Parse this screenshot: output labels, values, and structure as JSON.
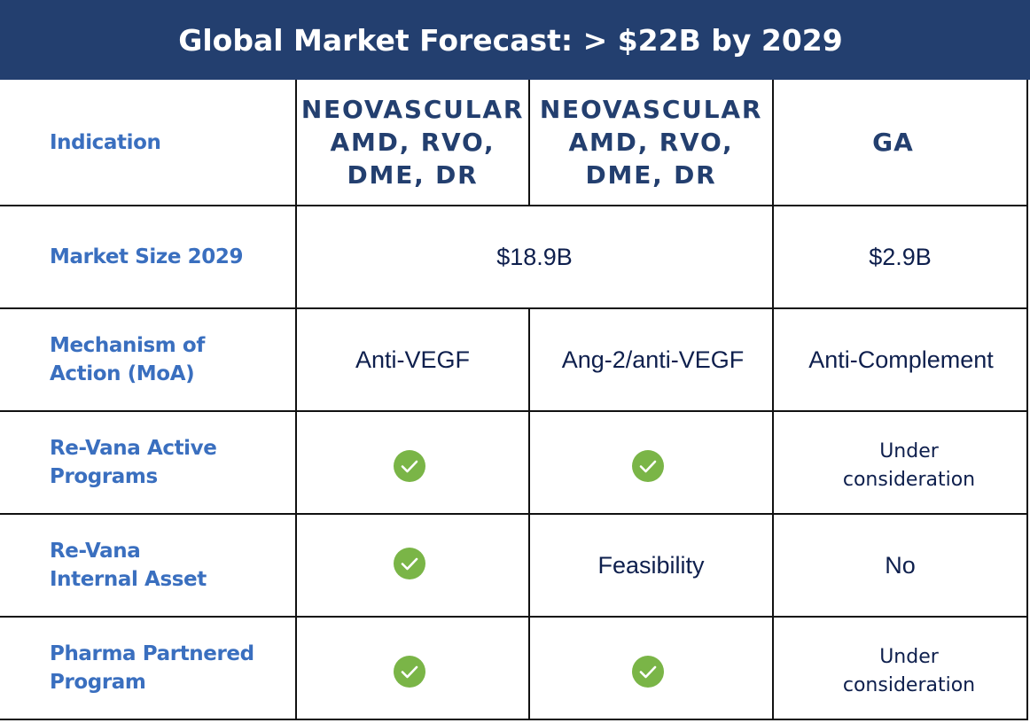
{
  "title": "Global Market Forecast: > $22B by 2029",
  "colors": {
    "title_bg": "#233f6f",
    "title_text": "#ffffff",
    "label_text": "#3a6fbf",
    "header_text": "#233f6f",
    "body_text": "#0e1f4d",
    "check_fill": "#7ab547",
    "grid_line": "#111111"
  },
  "rows": {
    "indication": {
      "label": "Indication",
      "col1": "NEOVASCULAR\nAMD, RVO,\nDME, DR",
      "col2": "NEOVASCULAR\nAMD, RVO,\nDME, DR",
      "col3": "GA"
    },
    "market_size": {
      "label": "Market Size 2029",
      "col12": "$18.9B",
      "col3": "$2.9B"
    },
    "moa": {
      "label": "Mechanism of\nAction (MoA)",
      "col1": "Anti-VEGF",
      "col2": "Ang-2/anti-VEGF",
      "col3": "Anti-Complement"
    },
    "active_programs": {
      "label": "Re-Vana Active\nPrograms",
      "col1_icon": "check-circle-icon",
      "col2_icon": "check-circle-icon",
      "col3": "Under\nconsideration"
    },
    "internal_asset": {
      "label": "Re-Vana\nInternal Asset",
      "col1_icon": "check-circle-icon",
      "col2": "Feasibility",
      "col3": "No"
    },
    "partnered": {
      "label": "Pharma Partnered\nProgram",
      "col1_icon": "check-circle-icon",
      "col2_icon": "check-circle-icon",
      "col3": "Under\nconsideration"
    }
  }
}
